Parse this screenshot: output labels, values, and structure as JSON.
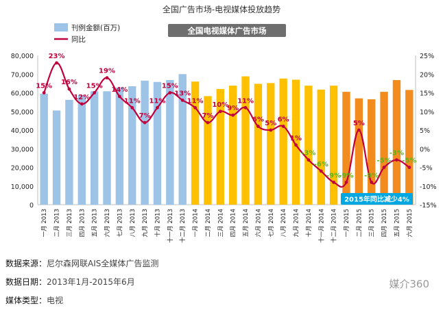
{
  "page_title": "全国广告市场-电视媒体投放趋势",
  "footer": {
    "source_label": "数据来源：",
    "source_value": "尼尔森网联AIS全媒体广告监测",
    "date_label": "数据日期：",
    "date_value": "2013年1月-2015年6月",
    "media_label": "媒体类型：",
    "media_value": "电视"
  },
  "watermark": "媒介360",
  "colors": {
    "bar_2013": "#9DC3E6",
    "bar_2014": "#FFC000",
    "bar_2015": "#F28C1E",
    "line": "#C0003C",
    "label_pos": "#C0003C",
    "label_neg": "#5BB318",
    "callout_bg": "#00A7E1",
    "title_badge_bg": "#6E6E6E"
  },
  "chart_data": {
    "type": "bar+line",
    "title": "全国电视媒体广告市场",
    "legend": {
      "placement": "top-left",
      "bar_label": "刊例金额(百万)",
      "line_label": "同比"
    },
    "y_left": {
      "min": 0,
      "max": 80000,
      "ticks": [
        "0",
        "10,000",
        "20,000",
        "30,000",
        "40,000",
        "50,000",
        "60,000",
        "70,000",
        "80,000"
      ]
    },
    "y_right": {
      "min": -15,
      "max": 25,
      "ticks": [
        "-15%",
        "-10%",
        "-5%",
        "0%",
        "5%",
        "10%",
        "15%",
        "20%",
        "25%"
      ]
    },
    "grid": false,
    "categories": [
      "一月 2013",
      "二月 2013",
      "三月 2013",
      "四月 2013",
      "五月 2013",
      "六月 2013",
      "七月 2013",
      "八月 2013",
      "九月 2013",
      "十月 2013",
      "十一月 2013",
      "十二月 2013",
      "一月 2014",
      "二月 2014",
      "三月 2014",
      "四月 2014",
      "五月 2014",
      "六月 2014",
      "七月 2014",
      "八月 2014",
      "九月 2014",
      "十月 2014",
      "十一月 2014",
      "十二月 2014",
      "一月 2015",
      "二月 2015",
      "三月 2015",
      "四月 2015",
      "五月 2015",
      "六月 2015"
    ],
    "bars": [
      59500,
      50500,
      56200,
      58800,
      60800,
      60800,
      62800,
      63500,
      66500,
      65800,
      66800,
      70000,
      66000,
      58200,
      62000,
      63800,
      68800,
      64800,
      65200,
      67600,
      67000,
      63800,
      61700,
      63800,
      60500,
      57000,
      56500,
      60500,
      66800,
      61500
    ],
    "yoy": [
      15,
      23,
      16,
      12,
      15,
      19,
      14,
      11,
      7,
      11,
      15,
      13,
      11,
      7,
      10,
      9,
      11,
      6,
      5,
      6,
      1,
      -3,
      -6,
      -9,
      -9,
      5,
      -9,
      -5,
      -3,
      -5
    ],
    "yoy_labels": [
      "15%",
      "23%",
      "16%",
      "12%",
      "15%",
      "19%",
      "14%",
      "11%",
      "7%",
      "11%",
      "15%",
      "13%",
      "11%",
      "7%",
      "10%",
      "9%",
      "11%",
      "6%",
      "5%",
      "6%",
      "1%",
      "-3%",
      "-6%",
      "-9%",
      "-9%",
      "5%",
      "-9%",
      "-5%",
      "-3%",
      "-5%"
    ],
    "callout": "2015年同比减少4%"
  }
}
